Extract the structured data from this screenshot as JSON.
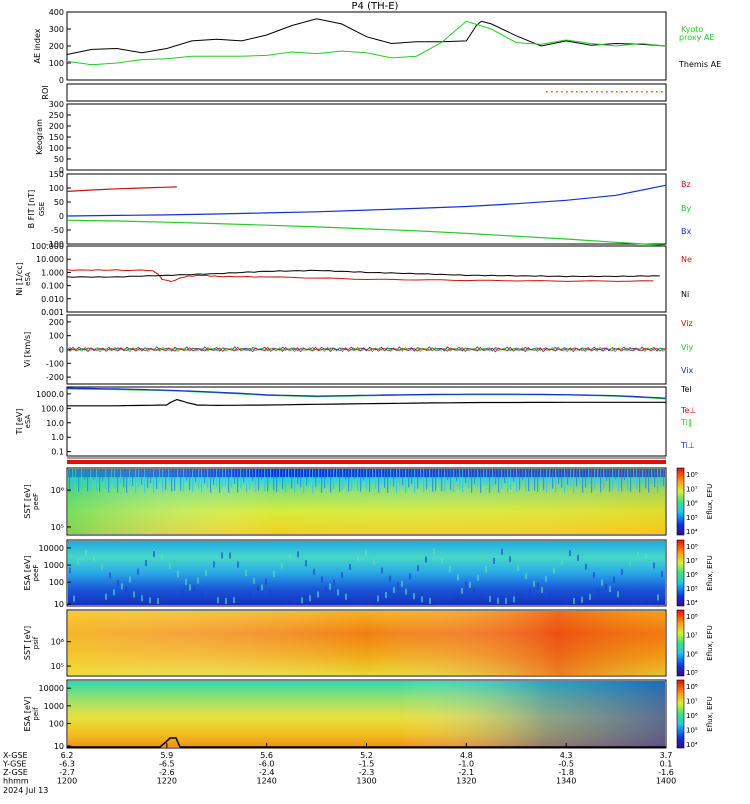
{
  "chart_data": {
    "type": "line",
    "title": "P4  (TH-E)",
    "date_label": "2024 Jul 13",
    "time_axis": {
      "tick_labels": [
        "1200",
        "1220",
        "1240",
        "1300",
        "1320",
        "1340",
        "1400"
      ],
      "row_labels": [
        "X-GSE",
        "Y-GSE",
        "Z-GSE",
        "hhmm"
      ],
      "rows": {
        "X-GSE": [
          "6.2",
          "5.9",
          "5.6",
          "5.2",
          "4.8",
          "4.3",
          "3.7"
        ],
        "Y-GSE": [
          "-6.3",
          "-6.5",
          "-6.0",
          "-1.5",
          "-1.0",
          "-0.5",
          "0.1"
        ],
        "Z-GSE": [
          "-2.7",
          "-2.6",
          "-2.4",
          "-2.3",
          "-2.1",
          "-1.8",
          "-1.6"
        ]
      }
    },
    "panels": [
      {
        "id": "ae",
        "ylabel": "AE index",
        "yticks": [
          "400",
          "300",
          "200",
          "100",
          "0"
        ],
        "ylim": [
          0,
          400
        ],
        "legend": [
          "Kyoto",
          "proxy AE",
          "Themis AE"
        ],
        "series": [
          {
            "name": "Themis AE",
            "color": "#000000",
            "x": [
              0,
              5,
              10,
              15,
              20,
              25,
              30,
              35,
              40,
              45,
              50,
              55,
              60,
              65,
              70,
              75,
              80,
              82,
              83,
              85,
              90,
              95,
              100,
              105,
              110,
              115,
              120
            ],
            "y": [
              150,
              180,
              185,
              160,
              185,
              230,
              240,
              230,
              265,
              320,
              360,
              330,
              255,
              215,
              225,
              225,
              230,
              320,
              345,
              330,
              260,
              200,
              230,
              205,
              215,
              210,
              200
            ]
          },
          {
            "name": "Kyoto proxy AE",
            "color": "#22cc22",
            "x": [
              0,
              5,
              10,
              15,
              20,
              25,
              30,
              35,
              40,
              45,
              50,
              55,
              60,
              65,
              70,
              75,
              80,
              85,
              90,
              95,
              100,
              105,
              110,
              115,
              120
            ],
            "y": [
              110,
              90,
              100,
              120,
              125,
              140,
              140,
              140,
              145,
              165,
              155,
              170,
              160,
              130,
              140,
              220,
              345,
              300,
              220,
              210,
              235,
              215,
              200,
              215,
              200
            ]
          }
        ]
      },
      {
        "id": "roi",
        "ylabel": "ROI",
        "yticks": [],
        "series": [
          {
            "name": "ROI",
            "color": "#ff4400",
            "x_start": 96,
            "x_end": 120
          }
        ]
      },
      {
        "id": "keogram",
        "ylabel": "Keogram",
        "yticks": [
          "300",
          "250",
          "200",
          "150",
          "100",
          "50",
          "0"
        ],
        "ylim": [
          0,
          300
        ]
      },
      {
        "id": "bfield",
        "ylabel": "B FIT [nT]",
        "ylabel_sub": "GSE",
        "yticks": [
          "150",
          "100",
          "50",
          "0",
          "-50",
          "-100"
        ],
        "ylim": [
          -100,
          150
        ],
        "legend": [
          "Bz",
          "By",
          "Bx"
        ],
        "series": [
          {
            "name": "Bz",
            "color": "#cc1111",
            "x": [
              0,
              5,
              10,
              15,
              20,
              22
            ],
            "y": [
              88,
              93,
              97,
              100,
              103,
              104
            ]
          },
          {
            "name": "By",
            "color": "#1133cc",
            "x": [
              0,
              10,
              20,
              30,
              40,
              50,
              60,
              70,
              80,
              90,
              100,
              110,
              120
            ],
            "y": [
              0,
              2,
              4,
              7,
              11,
              15,
              21,
              27,
              34,
              44,
              56,
              74,
              110
            ]
          },
          {
            "name": "Bx",
            "color": "#22cc22",
            "x": [
              0,
              10,
              20,
              30,
              40,
              50,
              60,
              70,
              80,
              90,
              100,
              110,
              120
            ],
            "y": [
              -15,
              -18,
              -22,
              -27,
              -33,
              -39,
              -46,
              -53,
              -62,
              -72,
              -82,
              -94,
              -105
            ]
          }
        ]
      },
      {
        "id": "density",
        "ylabel": "Ni [1/cc]",
        "ylabel_sub": "eSA",
        "yticks": [
          "100.000",
          "10.000",
          "1.000",
          "0.100",
          "0.010",
          "0.001"
        ],
        "ylim": [
          0.001,
          100
        ],
        "log": true,
        "legend": [
          "Ne",
          "Ni"
        ],
        "series": [
          {
            "name": "Ne",
            "color": "#cc1111",
            "x": [
              0,
              10,
              17,
              19,
              21,
              24,
              27,
              30,
              40,
              60,
              80,
              100,
              120
            ],
            "y": [
              1.5,
              1.5,
              1.4,
              0.3,
              0.2,
              0.5,
              0.6,
              0.5,
              0.45,
              0.3,
              0.25,
              0.22,
              0.22
            ]
          },
          {
            "name": "Ni",
            "color": "#000000",
            "x": [
              0,
              10,
              20,
              30,
              40,
              50,
              60,
              70,
              80,
              90,
              100,
              110,
              120
            ],
            "y": [
              0.45,
              0.45,
              0.6,
              0.8,
              1.2,
              1.4,
              1.0,
              0.8,
              0.6,
              0.55,
              0.5,
              0.5,
              0.55
            ]
          }
        ]
      },
      {
        "id": "velocity",
        "ylabel": "Vi [km/s]",
        "yticks": [
          "200",
          "100",
          "0",
          "-100",
          "-200"
        ],
        "ylim": [
          -250,
          250
        ],
        "legend": [
          "Viz",
          "Viy",
          "Vix"
        ]
      },
      {
        "id": "temperature",
        "ylabel": "Ti [eV]",
        "ylabel_sub": "eSA",
        "yticks": [
          "1000.0",
          "100.0",
          "10.0",
          "1.0",
          "0.1"
        ],
        "ylim": [
          0.05,
          3000
        ],
        "log": true,
        "legend": [
          "Tel",
          "Te⊥",
          "Ti∥",
          "Ti⊥"
        ],
        "series": [
          {
            "name": "Tel",
            "color": "#000000",
            "x": [
              0,
              10,
              20,
              22,
              24,
              26,
              30,
              40,
              60,
              80,
              100,
              120
            ],
            "y": [
              150,
              150,
              170,
              400,
              250,
              170,
              160,
              170,
              210,
              250,
              260,
              260
            ]
          },
          {
            "name": "Ti∥",
            "color": "#22cc22",
            "x": [
              0,
              10,
              20,
              30,
              40,
              50,
              60,
              70,
              80,
              90,
              100,
              110,
              120
            ],
            "y": [
              2200,
              2000,
              1700,
              1200,
              800,
              650,
              750,
              850,
              900,
              900,
              850,
              700,
              450
            ]
          },
          {
            "name": "Ti⊥",
            "color": "#1133cc",
            "x": [
              0,
              10,
              20,
              30,
              40,
              50,
              60,
              70,
              80,
              90,
              100,
              110,
              120
            ],
            "y": [
              2500,
              2200,
              1800,
              1300,
              850,
              700,
              800,
              900,
              950,
              950,
              880,
              750,
              500
            ]
          }
        ]
      },
      {
        "id": "sst_e",
        "ylabel": "SST [eV]",
        "ylabel_sub": "peeF",
        "yticks": [
          "10⁶",
          "10⁵"
        ],
        "colorbar": {
          "label": "Eflux, EFU",
          "ticks": [
            "10⁸",
            "10⁷",
            "10⁶",
            "10⁵",
            "10⁴"
          ]
        }
      },
      {
        "id": "esa_e",
        "ylabel": "ESA [eV]",
        "ylabel_sub": "peeF",
        "yticks": [
          "10000",
          "1000",
          "100",
          "10"
        ],
        "colorbar": {
          "label": "Eflux, EFU",
          "ticks": [
            "10⁸",
            "10⁷",
            "10⁶",
            "10⁵",
            "10⁴"
          ]
        }
      },
      {
        "id": "sst_i",
        "ylabel": "SST [eV]",
        "ylabel_sub": "psif",
        "yticks": [
          "10⁶",
          "10⁵"
        ],
        "colorbar": {
          "label": "Eflux, EFU",
          "ticks": [
            "10⁸",
            "10⁷",
            "10⁶",
            "10⁵"
          ]
        }
      },
      {
        "id": "esa_i",
        "ylabel": "ESA [eV]",
        "ylabel_sub": "peif",
        "yticks": [
          "10000",
          "1000",
          "100",
          "10"
        ],
        "colorbar": {
          "label": "Eflux, EFU",
          "ticks": [
            "10⁸",
            "10⁷",
            "10⁶",
            "10⁵",
            "10⁴"
          ]
        }
      }
    ]
  }
}
